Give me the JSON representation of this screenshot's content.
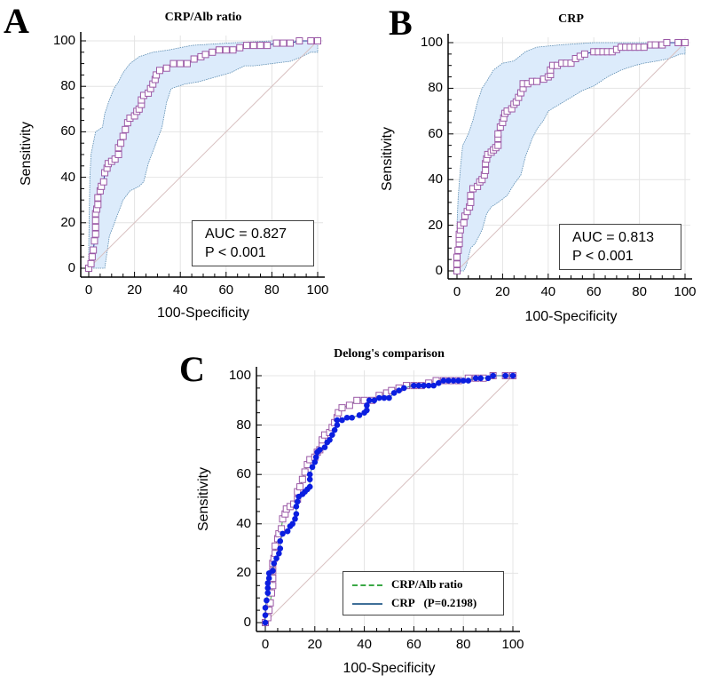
{
  "chart_data": [
    {
      "panel": "A",
      "type": "line",
      "title": "CRP/Alb ratio",
      "xlabel": "100-Specificity",
      "ylabel": "Sensitivity",
      "xlim": [
        0,
        100
      ],
      "ylim": [
        0,
        100
      ],
      "xticks": [
        "0",
        "20",
        "40",
        "60",
        "80",
        "100"
      ],
      "yticks": [
        "0",
        "20",
        "40",
        "60",
        "80",
        "100"
      ],
      "grid": true,
      "annotation": [
        "AUC = 0.827",
        "P < 0.001"
      ],
      "colors": {
        "curve": "#9b59a6",
        "marker_fill": "#ffffff",
        "ci_fill": "#dcebfb",
        "ci_line": "#5a8bb0",
        "diagonal": "#d8c0c0"
      },
      "series": [
        {
          "name": "CRP/Alb ratio",
          "marker": "square",
          "points": [
            [
              0,
              0
            ],
            [
              1,
              2
            ],
            [
              1.5,
              5
            ],
            [
              2,
              8
            ],
            [
              2.5,
              12
            ],
            [
              3,
              15
            ],
            [
              3,
              18
            ],
            [
              3,
              21
            ],
            [
              3,
              24
            ],
            [
              3.5,
              26
            ],
            [
              4,
              28
            ],
            [
              4,
              31
            ],
            [
              5,
              34
            ],
            [
              5.5,
              36
            ],
            [
              6.5,
              38
            ],
            [
              7,
              42
            ],
            [
              8,
              44
            ],
            [
              8.5,
              46
            ],
            [
              10,
              47
            ],
            [
              11.5,
              48
            ],
            [
              13,
              50
            ],
            [
              13,
              53
            ],
            [
              14,
              55
            ],
            [
              15,
              58
            ],
            [
              16,
              61
            ],
            [
              17,
              64
            ],
            [
              18,
              66
            ],
            [
              20,
              67
            ],
            [
              21,
              69
            ],
            [
              22,
              70
            ],
            [
              23,
              72
            ],
            [
              23,
              74
            ],
            [
              24,
              76
            ],
            [
              26,
              77
            ],
            [
              27,
              79
            ],
            [
              28,
              81
            ],
            [
              29,
              83
            ],
            [
              29.5,
              85
            ],
            [
              31,
              87
            ],
            [
              34,
              88
            ],
            [
              37,
              90
            ],
            [
              40,
              90
            ],
            [
              43,
              90
            ],
            [
              46,
              92
            ],
            [
              49,
              93
            ],
            [
              51,
              94
            ],
            [
              54,
              95
            ],
            [
              57,
              96
            ],
            [
              60,
              96
            ],
            [
              63,
              96
            ],
            [
              66,
              97
            ],
            [
              69,
              98
            ],
            [
              72,
              98
            ],
            [
              75,
              98
            ],
            [
              78,
              98
            ],
            [
              82,
              99
            ],
            [
              85,
              99
            ],
            [
              88,
              99
            ],
            [
              92,
              100
            ],
            [
              97,
              100
            ],
            [
              100,
              100
            ]
          ]
        }
      ],
      "ci_upper": [
        [
          0,
          0
        ],
        [
          0,
          10
        ],
        [
          0.5,
          40
        ],
        [
          1,
          50
        ],
        [
          2,
          55
        ],
        [
          3,
          60
        ],
        [
          6,
          62
        ],
        [
          7,
          68
        ],
        [
          9,
          74
        ],
        [
          11,
          79
        ],
        [
          13,
          82
        ],
        [
          15,
          86
        ],
        [
          18,
          90
        ],
        [
          22,
          93
        ],
        [
          28,
          95
        ],
        [
          35,
          96
        ],
        [
          45,
          98
        ],
        [
          60,
          99
        ],
        [
          80,
          100
        ],
        [
          100,
          100
        ]
      ],
      "ci_lower": [
        [
          100,
          100
        ],
        [
          100,
          95
        ],
        [
          97,
          95
        ],
        [
          93,
          93
        ],
        [
          88,
          91
        ],
        [
          80,
          90
        ],
        [
          72,
          89
        ],
        [
          68,
          89
        ],
        [
          62,
          86
        ],
        [
          55,
          84
        ],
        [
          48,
          82
        ],
        [
          42,
          81
        ],
        [
          36,
          79
        ],
        [
          34,
          73
        ],
        [
          32,
          62
        ],
        [
          29,
          54
        ],
        [
          26,
          46
        ],
        [
          24,
          38
        ],
        [
          22,
          36
        ],
        [
          18,
          34
        ],
        [
          15,
          30
        ],
        [
          12,
          22
        ],
        [
          9,
          14
        ],
        [
          8,
          7
        ],
        [
          7,
          0
        ],
        [
          0,
          0
        ]
      ]
    },
    {
      "panel": "B",
      "type": "line",
      "title": "CRP",
      "xlabel": "100-Specificity",
      "ylabel": "Sensitivity",
      "xlim": [
        0,
        100
      ],
      "ylim": [
        0,
        100
      ],
      "xticks": [
        "0",
        "20",
        "40",
        "60",
        "80",
        "100"
      ],
      "yticks": [
        "0",
        "20",
        "40",
        "60",
        "80",
        "100"
      ],
      "grid": true,
      "annotation": [
        "AUC = 0.813",
        "P < 0.001"
      ],
      "colors": {
        "curve": "#9b59a6",
        "marker_fill": "#ffffff",
        "ci_fill": "#dcebfb",
        "ci_line": "#5a8bb0",
        "diagonal": "#d8c0c0"
      },
      "series": [
        {
          "name": "CRP",
          "marker": "square",
          "points": [
            [
              0,
              0
            ],
            [
              0,
              3
            ],
            [
              0,
              6
            ],
            [
              0.5,
              9
            ],
            [
              1,
              12
            ],
            [
              1,
              14
            ],
            [
              1,
              16
            ],
            [
              1.5,
              18
            ],
            [
              1.5,
              20
            ],
            [
              3,
              21
            ],
            [
              3.5,
              24
            ],
            [
              4.5,
              26
            ],
            [
              5.5,
              28
            ],
            [
              6,
              30
            ],
            [
              6,
              33
            ],
            [
              7,
              36
            ],
            [
              9,
              37
            ],
            [
              10,
              39
            ],
            [
              11,
              40
            ],
            [
              12,
              42
            ],
            [
              12.5,
              44
            ],
            [
              12.5,
              47
            ],
            [
              13,
              49
            ],
            [
              13.5,
              51
            ],
            [
              15,
              52
            ],
            [
              16,
              53
            ],
            [
              17,
              54
            ],
            [
              18,
              55
            ],
            [
              18,
              58
            ],
            [
              18,
              60
            ],
            [
              19,
              63
            ],
            [
              20,
              65
            ],
            [
              20.5,
              67
            ],
            [
              21,
              69
            ],
            [
              22,
              70
            ],
            [
              24,
              71
            ],
            [
              25,
              73
            ],
            [
              26,
              74
            ],
            [
              27,
              76
            ],
            [
              28,
              78
            ],
            [
              29,
              80
            ],
            [
              29,
              82
            ],
            [
              31,
              82
            ],
            [
              33,
              83
            ],
            [
              35,
              83
            ],
            [
              38,
              84
            ],
            [
              40,
              85
            ],
            [
              41,
              86
            ],
            [
              41,
              88
            ],
            [
              42,
              90
            ],
            [
              44,
              90
            ],
            [
              46,
              91
            ],
            [
              48,
              91
            ],
            [
              50,
              91
            ],
            [
              52,
              93
            ],
            [
              54,
              94
            ],
            [
              56,
              95
            ],
            [
              60,
              96
            ],
            [
              62,
              96
            ],
            [
              64,
              96
            ],
            [
              66,
              96
            ],
            [
              68,
              96
            ],
            [
              70,
              97
            ],
            [
              72,
              98
            ],
            [
              74,
              98
            ],
            [
              76,
              98
            ],
            [
              78,
              98
            ],
            [
              80,
              98
            ],
            [
              82,
              98
            ],
            [
              85,
              99
            ],
            [
              87,
              99
            ],
            [
              90,
              99
            ],
            [
              92,
              100
            ],
            [
              97,
              100
            ],
            [
              100,
              100
            ]
          ]
        }
      ],
      "ci_upper": [
        [
          0,
          0
        ],
        [
          0,
          20
        ],
        [
          0.5,
          32
        ],
        [
          1.5,
          45
        ],
        [
          2.5,
          55
        ],
        [
          5,
          60
        ],
        [
          7,
          66
        ],
        [
          9,
          74
        ],
        [
          11,
          80
        ],
        [
          13,
          83
        ],
        [
          16,
          88
        ],
        [
          20,
          91
        ],
        [
          25,
          92
        ],
        [
          30,
          96
        ],
        [
          35,
          98
        ],
        [
          45,
          99
        ],
        [
          60,
          100
        ],
        [
          100,
          100
        ]
      ],
      "ci_lower": [
        [
          100,
          100
        ],
        [
          100,
          95
        ],
        [
          98,
          95
        ],
        [
          93,
          93
        ],
        [
          88,
          92
        ],
        [
          82,
          91
        ],
        [
          78,
          90
        ],
        [
          72,
          88
        ],
        [
          66,
          85
        ],
        [
          60,
          81
        ],
        [
          55,
          79
        ],
        [
          50,
          76
        ],
        [
          45,
          73
        ],
        [
          40,
          70
        ],
        [
          38,
          66
        ],
        [
          35,
          62
        ],
        [
          33,
          58
        ],
        [
          30,
          50
        ],
        [
          28,
          42
        ],
        [
          25,
          38
        ],
        [
          22,
          33
        ],
        [
          18,
          30
        ],
        [
          15,
          28
        ],
        [
          13,
          25
        ],
        [
          11,
          18
        ],
        [
          8,
          12
        ],
        [
          6,
          10
        ],
        [
          4,
          2
        ],
        [
          3,
          0
        ],
        [
          0,
          0
        ]
      ]
    },
    {
      "panel": "C",
      "type": "line",
      "title": "Delong's comparison",
      "xlabel": "100-Specificity",
      "ylabel": "Sensitivity",
      "xlim": [
        0,
        100
      ],
      "ylim": [
        0,
        100
      ],
      "xticks": [
        "0",
        "20",
        "40",
        "60",
        "80",
        "100"
      ],
      "yticks": [
        "0",
        "20",
        "40",
        "60",
        "80",
        "100"
      ],
      "grid": true,
      "legend": {
        "position": "bottom-right",
        "entries": [
          {
            "label": "CRP/Alb ratio",
            "style": "dashed",
            "color": "#3aa845"
          },
          {
            "label": "CRP",
            "style": "solid",
            "color": "#3f6f98",
            "note": "(P=0.2198)"
          }
        ]
      },
      "colors": {
        "crp_alb_marker": "#9b59a6",
        "crp_marker": "#0b1ee0",
        "diagonal": "#d8c0c0"
      },
      "series": [
        {
          "name": "CRP/Alb ratio",
          "marker": "square",
          "ref": 0
        },
        {
          "name": "CRP",
          "marker": "dot",
          "ref": 1
        }
      ]
    }
  ]
}
